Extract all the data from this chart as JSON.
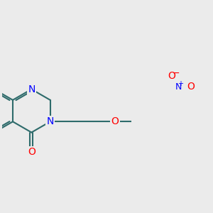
{
  "bg_color": "#ebebeb",
  "bond_color": "#2e6b6b",
  "N_color": "#0000ff",
  "O_color": "#ff0000",
  "bond_width": 1.5,
  "font_size": 10,
  "fig_size": [
    3.0,
    3.0
  ],
  "dpi": 100,
  "xlim": [
    -0.5,
    5.5
  ],
  "ylim": [
    -1.8,
    2.2
  ]
}
